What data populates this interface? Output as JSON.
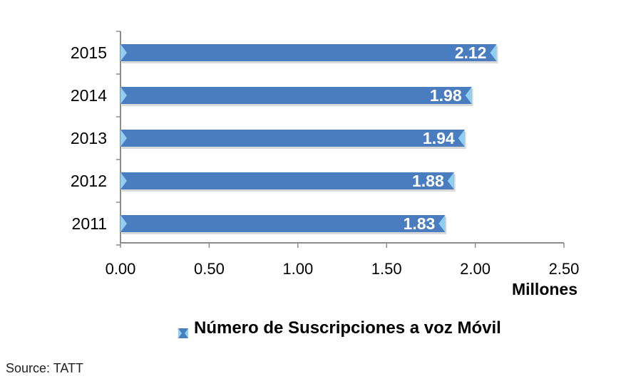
{
  "chart_data": {
    "type": "bar",
    "orientation": "horizontal",
    "categories": [
      "2015",
      "2014",
      "2013",
      "2012",
      "2011"
    ],
    "series": [
      {
        "name": "Número de Suscripciones a voz Móvil",
        "values": [
          2.12,
          1.98,
          1.94,
          1.88,
          1.83
        ],
        "value_labels": [
          "2.12",
          "1.98",
          "1.94",
          "1.88",
          "1.83"
        ],
        "color": "#4a7dbf"
      }
    ],
    "xlim": [
      0,
      2.5
    ],
    "x_ticks": [
      "0.00",
      "0.50",
      "1.00",
      "1.50",
      "2.00",
      "2.50"
    ],
    "xlabel": "Millones",
    "legend_position": "bottom"
  },
  "source": "Source: TATT",
  "colors": {
    "bar": "#4a7dbf",
    "bar_edge_light": "#8fd0f2",
    "axis": "#8c8c8c"
  }
}
